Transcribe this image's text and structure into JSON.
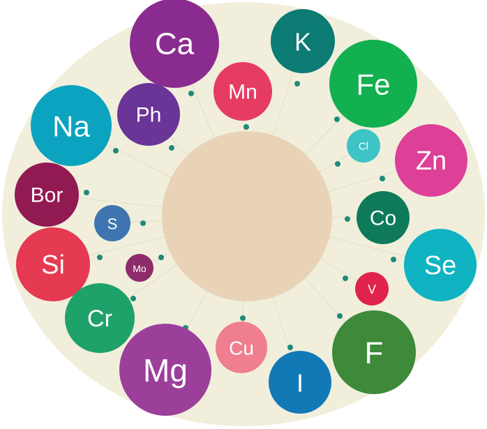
{
  "colors": {
    "background_disc": "#f1efdc",
    "center": "#e9d3b6",
    "dot": "#1d8a78",
    "spoke": "#e6e2cf"
  },
  "center": {},
  "elements": [
    {
      "key": "ca",
      "label": "Ca",
      "color": "#8a2b8f"
    },
    {
      "key": "k",
      "label": "K",
      "color": "#0c7b74"
    },
    {
      "key": "mn",
      "label": "Mn",
      "color": "#e63b63"
    },
    {
      "key": "fe",
      "label": "Fe",
      "color": "#12b04f"
    },
    {
      "key": "ph",
      "label": "Ph",
      "color": "#6a3596"
    },
    {
      "key": "na",
      "label": "Na",
      "color": "#0ba3bf"
    },
    {
      "key": "cl",
      "label": "Cl",
      "color": "#3ec3c6"
    },
    {
      "key": "zn",
      "label": "Zn",
      "color": "#de3f97"
    },
    {
      "key": "bor",
      "label": "Bor",
      "color": "#921a52"
    },
    {
      "key": "co",
      "label": "Co",
      "color": "#0f7a5a"
    },
    {
      "key": "s",
      "label": "S",
      "color": "#3e75b0"
    },
    {
      "key": "se",
      "label": "Se",
      "color": "#10b3c2"
    },
    {
      "key": "si",
      "label": "Si",
      "color": "#e53a52"
    },
    {
      "key": "mo",
      "label": "Mo",
      "color": "#8e2b6a"
    },
    {
      "key": "v",
      "label": "V",
      "color": "#e0234b"
    },
    {
      "key": "cr",
      "label": "Cr",
      "color": "#1fa26a"
    },
    {
      "key": "f",
      "label": "F",
      "color": "#3d8a3a"
    },
    {
      "key": "cu",
      "label": "Cu",
      "color": "#ef7e8f"
    },
    {
      "key": "mg",
      "label": "Mg",
      "color": "#9c3f9b"
    },
    {
      "key": "i",
      "label": "I",
      "color": "#1279b7"
    }
  ]
}
